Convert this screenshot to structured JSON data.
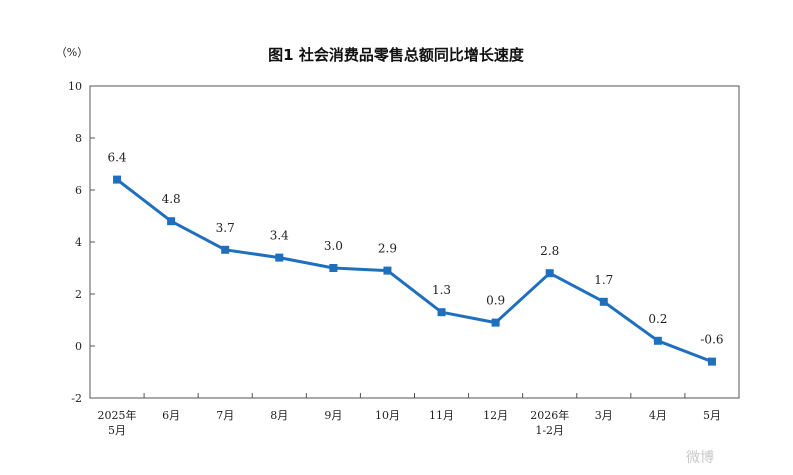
{
  "chart_data": {
    "type": "line",
    "title": "图1  社会消费品零售总额同比增长速度",
    "unit_label": "（%）",
    "xlabel": "",
    "ylabel": "",
    "ylim": [
      -2,
      10
    ],
    "yticks": [
      -2,
      0,
      2,
      4,
      6,
      8,
      10
    ],
    "grid": false,
    "line_color": "#1f6fbf",
    "categories": [
      [
        "2025年",
        "5月"
      ],
      [
        "6月"
      ],
      [
        "7月"
      ],
      [
        "8月"
      ],
      [
        "9月"
      ],
      [
        "10月"
      ],
      [
        "11月"
      ],
      [
        "12月"
      ],
      [
        "2026年",
        "1-2月"
      ],
      [
        "3月"
      ],
      [
        "4月"
      ],
      [
        "5月"
      ]
    ],
    "values": [
      6.4,
      4.8,
      3.7,
      3.4,
      3.0,
      2.9,
      1.3,
      0.9,
      2.8,
      1.7,
      0.2,
      -0.6
    ],
    "data_labels": [
      "6.4",
      "4.8",
      "3.7",
      "3.4",
      "3.0",
      "2.9",
      "1.3",
      "0.9",
      "2.8",
      "1.7",
      "0.2",
      "-0.6"
    ]
  },
  "watermark": {
    "text": "微博"
  }
}
